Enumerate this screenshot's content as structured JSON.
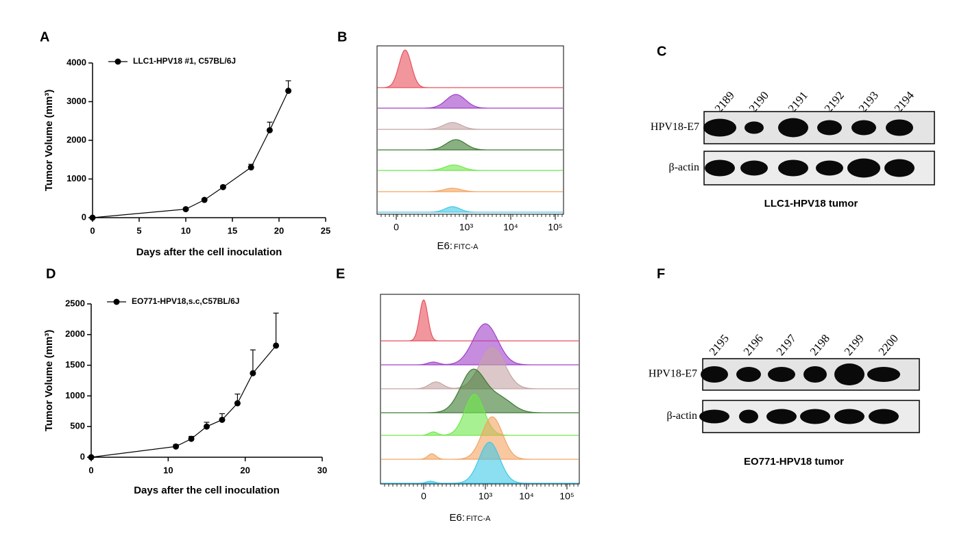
{
  "chart_data": [
    {
      "type": "line",
      "x": [
        0,
        10,
        12,
        14,
        17,
        19,
        21
      ],
      "series": [
        {
          "name": "LLC1-HPV18 #1, C57BL/6J",
          "color": "#000000",
          "values": [
            0,
            220,
            460,
            790,
            1300,
            2260,
            3280
          ],
          "errors": [
            0,
            20,
            30,
            40,
            80,
            210,
            260
          ]
        }
      ],
      "xlim": [
        0,
        25
      ],
      "xticks": [
        0,
        5,
        10,
        15,
        20,
        25
      ],
      "ylim": [
        0,
        4000
      ],
      "yticks": [
        0,
        1000,
        2000,
        3000,
        4000
      ],
      "x_label": "Days after the cell inoculation",
      "y_label": "Tumor Volume (mm³)"
    },
    {
      "type": "line",
      "x": [
        0,
        11,
        13,
        15,
        17,
        19,
        21,
        24
      ],
      "series": [
        {
          "name": "EO771-HPV18,s.c,C57BL/6J",
          "color": "#000000",
          "values": [
            0,
            175,
            300,
            500,
            610,
            880,
            1370,
            1820
          ],
          "errors": [
            0,
            30,
            40,
            70,
            100,
            150,
            380,
            530
          ]
        }
      ],
      "xlim": [
        0,
        30
      ],
      "xticks": [
        0,
        10,
        20,
        30
      ],
      "ylim": [
        0,
        2500
      ],
      "yticks": [
        0,
        500,
        1000,
        1500,
        2000,
        2500
      ],
      "x_label": "Days after the cell inoculation",
      "y_label": "Tumor Volume (mm³)"
    }
  ],
  "panel_labels": [
    "A",
    "B",
    "C",
    "D",
    "E",
    "F"
  ],
  "flow": [
    {
      "tick_labels": [
        "0",
        "10³",
        "10⁴",
        "10⁵"
      ],
      "x_label": "E6:",
      "x_label_channel": "FITC-A",
      "colors": [
        "#e8505b",
        "#a040c8",
        "#c4a4a4",
        "#3a7a30",
        "#6ee84a",
        "#f4a460",
        "#40c8e8"
      ]
    },
    {
      "tick_labels": [
        "0",
        "10³",
        "10⁴",
        "10⁵"
      ],
      "x_label": "E6:",
      "x_label_channel": "FITC-A",
      "colors": [
        "#e8505b",
        "#a040c8",
        "#c4a4a4",
        "#3a7a30",
        "#6ee84a",
        "#f4a460",
        "#40c8e8"
      ]
    }
  ],
  "blots": [
    {
      "lanes": [
        "2189",
        "2190",
        "2191",
        "2192",
        "2193",
        "2194"
      ],
      "rows": [
        "HPV18-E7",
        "β-actin"
      ],
      "caption": "LLC1-HPV18 tumor"
    },
    {
      "lanes": [
        "2195",
        "2196",
        "2197",
        "2198",
        "2199",
        "2200"
      ],
      "rows": [
        "HPV18-E7",
        "β-actin"
      ],
      "caption": "EO771-HPV18 tumor"
    }
  ]
}
